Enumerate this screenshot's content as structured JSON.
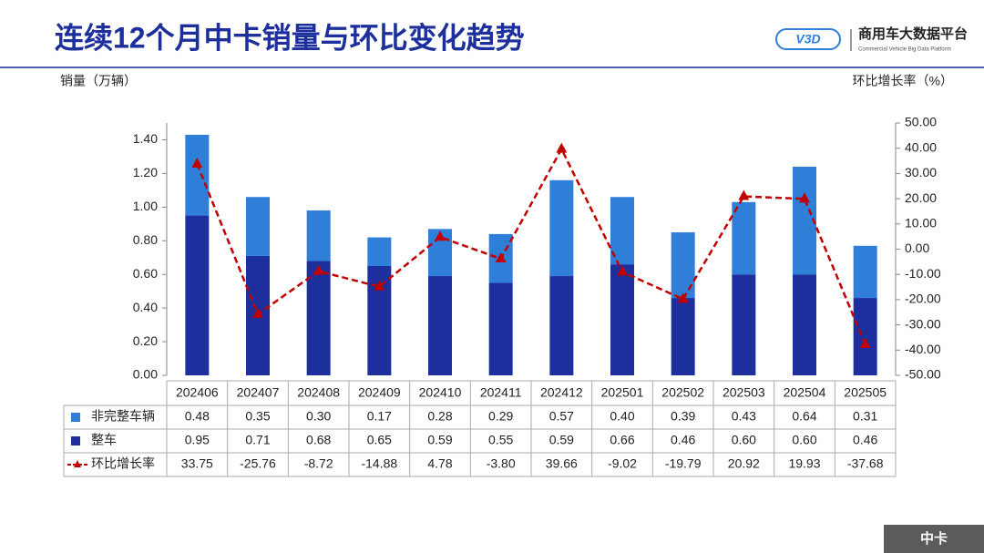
{
  "header": {
    "title": "连续12个月中卡销量与环比变化趋势",
    "brand": "商用车大数据平台",
    "brand_en": "Commercial Vehicle Big Data Platform",
    "logo": "V3D"
  },
  "footer": {
    "tag": "中卡"
  },
  "chart_data": {
    "type": "bar",
    "y_label": "销量（万辆）",
    "y2_label": "环比增长率（%）",
    "categories": [
      "202406",
      "202407",
      "202408",
      "202409",
      "202410",
      "202411",
      "202412",
      "202501",
      "202502",
      "202503",
      "202504",
      "202505"
    ],
    "series": [
      {
        "name": "非完整车辆",
        "color": "#2f7ed8",
        "values": [
          0.48,
          0.35,
          0.3,
          0.17,
          0.28,
          0.29,
          0.57,
          0.4,
          0.39,
          0.43,
          0.64,
          0.31
        ],
        "value_labels": [
          "0.48",
          "0.35",
          "0.30",
          "0.17",
          "0.28",
          "0.29",
          "0.57",
          "0.40",
          "0.39",
          "0.43",
          "0.64",
          "0.31"
        ]
      },
      {
        "name": "整车",
        "color": "#1c2f9c",
        "values": [
          0.95,
          0.71,
          0.68,
          0.65,
          0.59,
          0.55,
          0.59,
          0.66,
          0.46,
          0.6,
          0.6,
          0.46
        ],
        "value_labels": [
          "0.95",
          "0.71",
          "0.68",
          "0.65",
          "0.59",
          "0.55",
          "0.59",
          "0.66",
          "0.46",
          "0.60",
          "0.60",
          "0.46"
        ]
      },
      {
        "name": "环比增长率",
        "type": "line",
        "axis": "y2",
        "color": "#c00000",
        "values": [
          33.75,
          -25.76,
          -8.72,
          -14.88,
          4.78,
          -3.8,
          39.66,
          -9.02,
          -19.79,
          20.92,
          19.93,
          -37.68
        ],
        "value_labels": [
          "33.75",
          "-25.76",
          "-8.72",
          "-14.88",
          "4.78",
          "-3.80",
          "39.66",
          "-9.02",
          "-19.79",
          "20.92",
          "19.93",
          "-37.68"
        ]
      }
    ],
    "ylim": [
      0,
      1.5
    ],
    "yticks": [
      {
        "value": 0,
        "label": "0.00"
      },
      {
        "value": 0.2,
        "label": "0.20"
      },
      {
        "value": 0.4,
        "label": "0.40"
      },
      {
        "value": 0.6,
        "label": "0.60"
      },
      {
        "value": 0.8,
        "label": "0.80"
      },
      {
        "value": 1,
        "label": "1.00"
      },
      {
        "value": 1.2,
        "label": "1.20"
      },
      {
        "value": 1.4,
        "label": "1.40"
      }
    ],
    "y2lim": [
      -50,
      50
    ],
    "y2ticks": [
      {
        "value": -50,
        "label": "-50.00"
      },
      {
        "value": -40,
        "label": "-40.00"
      },
      {
        "value": -30,
        "label": "-30.00"
      },
      {
        "value": -20,
        "label": "-20.00"
      },
      {
        "value": -10,
        "label": "-10.00"
      },
      {
        "value": 0,
        "label": "0.00"
      },
      {
        "value": 10,
        "label": "10.00"
      },
      {
        "value": 20,
        "label": "20.00"
      },
      {
        "value": 30,
        "label": "30.00"
      },
      {
        "value": 40,
        "label": "40.00"
      },
      {
        "value": 50,
        "label": "50.00"
      }
    ]
  }
}
